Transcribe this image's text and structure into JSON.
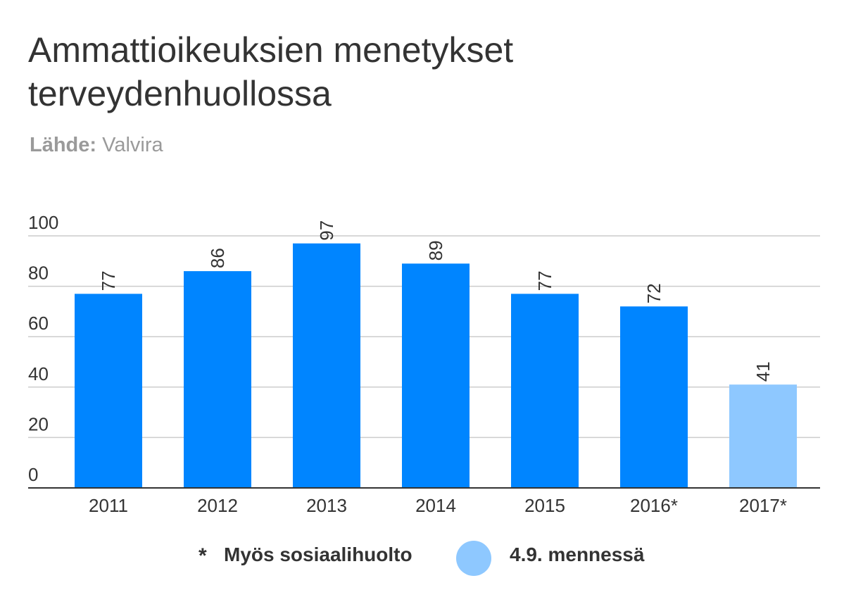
{
  "header": {
    "title": "Ammattioikeuksien menetykset terveydenhuollossa",
    "source_label": "Lähde:",
    "source_name": "Valvira"
  },
  "legend": {
    "star_symbol": "*",
    "star_text": "Myös sosiaalihuolto",
    "dot_text": "4.9. mennessä",
    "dot_color": "#8ec8ff"
  },
  "colors": {
    "bar": "#0085ff",
    "bar_highlight": "#8ec8ff",
    "grid": "#cccccc",
    "axis": "#333333",
    "text": "#333333"
  },
  "chart_data": {
    "type": "bar",
    "title": "Ammattioikeuksien menetykset terveydenhuollossa",
    "subtitle": "Lähde: Valvira",
    "categories": [
      "2011",
      "2012",
      "2013",
      "2014",
      "2015",
      "2016*",
      "2017*"
    ],
    "values": [
      77,
      86,
      97,
      89,
      77,
      72,
      41
    ],
    "highlight": [
      false,
      false,
      false,
      false,
      false,
      false,
      true
    ],
    "yticks": [
      0,
      20,
      40,
      60,
      80,
      100
    ],
    "ylim": [
      0,
      100
    ],
    "grid": true,
    "data_labels": true,
    "data_label_rotation": "vertical",
    "legend_position": "bottom"
  }
}
